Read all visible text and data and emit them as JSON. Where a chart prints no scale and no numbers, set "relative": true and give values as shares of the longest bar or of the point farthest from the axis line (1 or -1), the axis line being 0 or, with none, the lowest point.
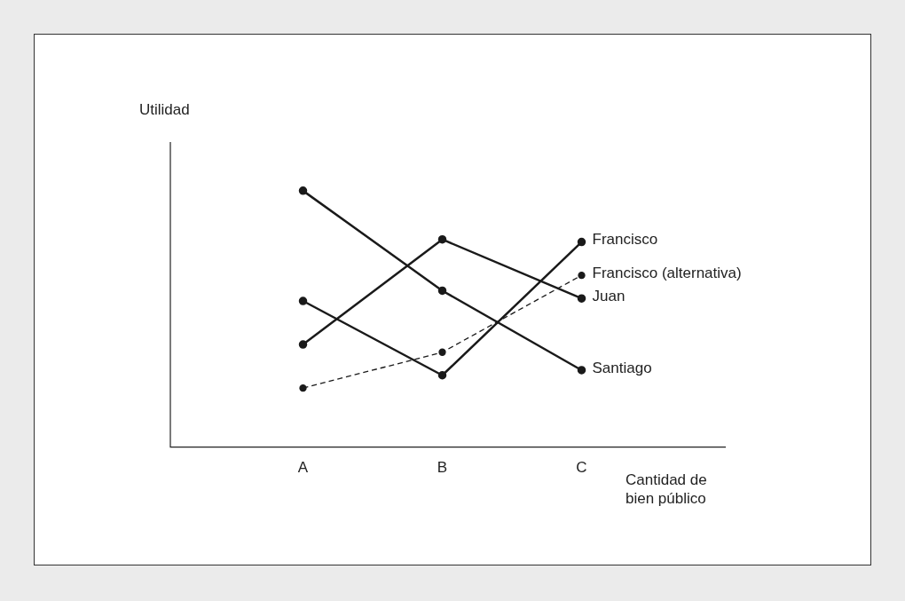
{
  "chart_data": {
    "type": "line",
    "relative": true,
    "xlabel": "Cantidad de bien público",
    "ylabel": "Utilidad",
    "categories": [
      "A",
      "B",
      "C"
    ],
    "marker": "circle",
    "grid": false,
    "legend": false,
    "series": [
      {
        "name": "Santiago",
        "color": "#1a1a1a",
        "values": [
          1,
          0.61,
          0.3
        ]
      },
      {
        "name": "Francisco",
        "color": "#1a1a1a",
        "values": [
          0.57,
          0.28,
          0.8
        ]
      },
      {
        "name": "Juan",
        "color": "#1a1a1a",
        "values": [
          0.4,
          0.81,
          0.58
        ]
      },
      {
        "name": "Francisco (alternativa)",
        "color": "#1a1a1a",
        "values": [
          0.23,
          0.37,
          0.67
        ],
        "line_style": "dashed"
      }
    ]
  }
}
